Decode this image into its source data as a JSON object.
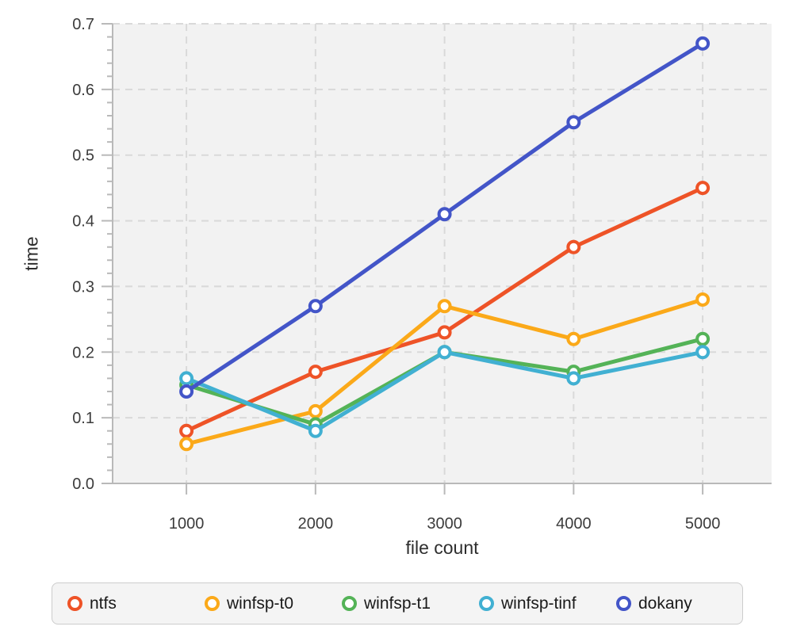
{
  "figure": {
    "plot_background": "#f2f2f2",
    "page_background": "#ffffff",
    "grid_color": "#d9d9d9",
    "axis_color": "#b9b9b9",
    "tick_label_color": "#3c3c3c",
    "axis_title_color": "#2e2e2e",
    "legend": {
      "background": "#f4f4f4",
      "border_color": "#cccccc",
      "text_color": "#1a1a1a",
      "position": "bottom"
    }
  },
  "chart_data": {
    "type": "line",
    "title": "",
    "xlabel": "file count",
    "ylabel": "time",
    "x": [
      1000,
      2000,
      3000,
      4000,
      5000
    ],
    "x_tick_labels": [
      "1000",
      "2000",
      "3000",
      "4000",
      "5000"
    ],
    "y_tick_labels": [
      "0.0",
      "0.1",
      "0.2",
      "0.3",
      "0.4",
      "0.5",
      "0.6",
      "0.7"
    ],
    "y_ticks": [
      0.0,
      0.1,
      0.2,
      0.3,
      0.4,
      0.5,
      0.6,
      0.7
    ],
    "y_minor_tick_step": 0.02,
    "xlim": [
      428,
      5534
    ],
    "ylim": [
      0,
      0.7
    ],
    "grid": true,
    "grid_style": "dashed",
    "legend_position": "bottom",
    "series": [
      {
        "name": "ntfs",
        "color": "#ee5327",
        "values": [
          0.08,
          0.17,
          0.23,
          0.36,
          0.45
        ]
      },
      {
        "name": "winfsp-t0",
        "color": "#fba919",
        "values": [
          0.06,
          0.11,
          0.27,
          0.22,
          0.28
        ]
      },
      {
        "name": "winfsp-t1",
        "color": "#54b357",
        "values": [
          0.15,
          0.09,
          0.2,
          0.17,
          0.22
        ]
      },
      {
        "name": "winfsp-tinf",
        "color": "#41b0d2",
        "values": [
          0.16,
          0.08,
          0.2,
          0.16,
          0.2
        ]
      },
      {
        "name": "dokany",
        "color": "#4355c8",
        "values": [
          0.14,
          0.27,
          0.41,
          0.55,
          0.67
        ]
      }
    ]
  }
}
